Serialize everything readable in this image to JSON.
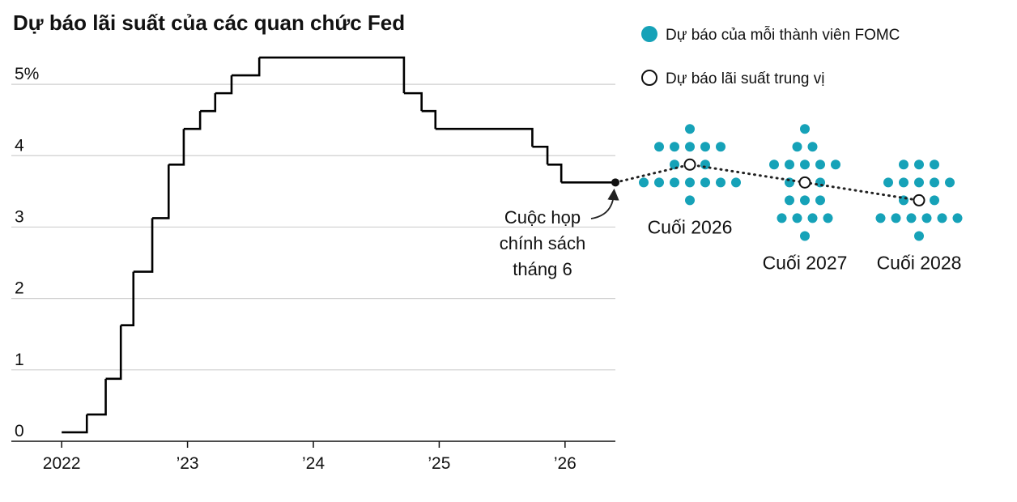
{
  "chart_data": {
    "type": "step-dot",
    "title": "Dự báo lãi suất của các quan chức Fed",
    "x": [
      2022.0,
      2022.2,
      2022.35,
      2022.47,
      2022.57,
      2022.72,
      2022.85,
      2022.97,
      2023.1,
      2023.22,
      2023.35,
      2023.57,
      2024.72,
      2024.86,
      2024.97,
      2025.74,
      2025.86,
      2025.97,
      2026.4
    ],
    "values": [
      0.125,
      0.375,
      0.875,
      1.625,
      2.375,
      3.125,
      3.875,
      4.375,
      4.625,
      4.875,
      5.125,
      5.375,
      4.875,
      4.625,
      4.375,
      4.125,
      3.875,
      3.625,
      3.625
    ],
    "color": "#000000",
    "xlim": [
      2021.6,
      2026.4
    ],
    "xticks": [
      2022,
      {
        "value": 2023,
        "label": "’23"
      },
      {
        "value": 2024,
        "label": "’24"
      },
      {
        "value": 2025,
        "label": "’25"
      },
      {
        "value": 2026,
        "label": "’26"
      }
    ],
    "ylim": [
      0,
      5.5
    ],
    "yticks": [
      0,
      1,
      2,
      3,
      4,
      {
        "value": 5,
        "label": "5%"
      }
    ],
    "grid": true,
    "annotation": [
      "Cuộc họp",
      "chính sách",
      "tháng 6"
    ],
    "legend": {
      "dots": "Dự báo của mỗi thành viên FOMC",
      "median": "Dự báo lãi suất trung vị"
    },
    "dot_color": "#16a2b8",
    "dot_groups": [
      {
        "label": "Cuối 2026",
        "median": 3.875,
        "dots": [
          {
            "value": 4.375,
            "count": 1
          },
          {
            "value": 4.125,
            "count": 5
          },
          {
            "value": 3.875,
            "count": 3
          },
          {
            "value": 3.625,
            "count": 7
          },
          {
            "value": 3.375,
            "count": 1
          }
        ]
      },
      {
        "label": "Cuối 2027",
        "median": 3.625,
        "dots": [
          {
            "value": 4.375,
            "count": 1
          },
          {
            "value": 4.125,
            "count": 2
          },
          {
            "value": 3.875,
            "count": 5
          },
          {
            "value": 3.625,
            "count": 3
          },
          {
            "value": 3.375,
            "count": 3
          },
          {
            "value": 3.125,
            "count": 4
          },
          {
            "value": 2.875,
            "count": 1
          }
        ]
      },
      {
        "label": "Cuối 2028",
        "median": 3.375,
        "dots": [
          {
            "value": 3.875,
            "count": 3
          },
          {
            "value": 3.625,
            "count": 5
          },
          {
            "value": 3.375,
            "count": 3
          },
          {
            "value": 3.125,
            "count": 6
          },
          {
            "value": 2.875,
            "count": 1
          }
        ]
      }
    ]
  }
}
